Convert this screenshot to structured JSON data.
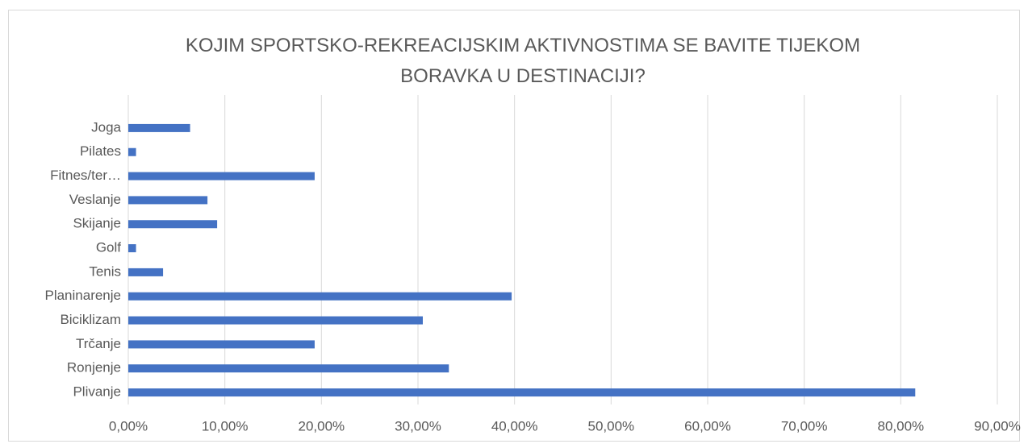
{
  "chart_data": {
    "type": "hbar",
    "title": "KOJIM SPORTSKO-REKREACIJSKIM AKTIVNOSTIMA SE BAVITE TIJEKOM BORAVKA U DESTINACIJI?",
    "categories": [
      "Joga",
      "Pilates",
      "Fitnes/ter…",
      "Veslanje",
      "Skijanje",
      "Golf",
      "Tenis",
      "Planinarenje",
      "Biciklizam",
      "Trčanje",
      "Ronjenje",
      "Plivanje"
    ],
    "values": [
      6.4,
      0.8,
      19.3,
      8.2,
      9.2,
      0.8,
      3.6,
      39.7,
      30.5,
      19.3,
      33.2,
      81.5
    ],
    "color": "#4472c4",
    "xlim": [
      0,
      90
    ],
    "xticks": [
      {
        "value": 0,
        "label": "0,00%"
      },
      {
        "value": 10,
        "label": "10,00%"
      },
      {
        "value": 20,
        "label": "20,00%"
      },
      {
        "value": 30,
        "label": "30,00%"
      },
      {
        "value": 40,
        "label": "40,00%"
      },
      {
        "value": 50,
        "label": "50,00%"
      },
      {
        "value": 60,
        "label": "60,00%"
      },
      {
        "value": 70,
        "label": "70,00%"
      },
      {
        "value": 80,
        "label": "80,00%"
      },
      {
        "value": 90,
        "label": "90,00%"
      }
    ],
    "grid": true
  }
}
